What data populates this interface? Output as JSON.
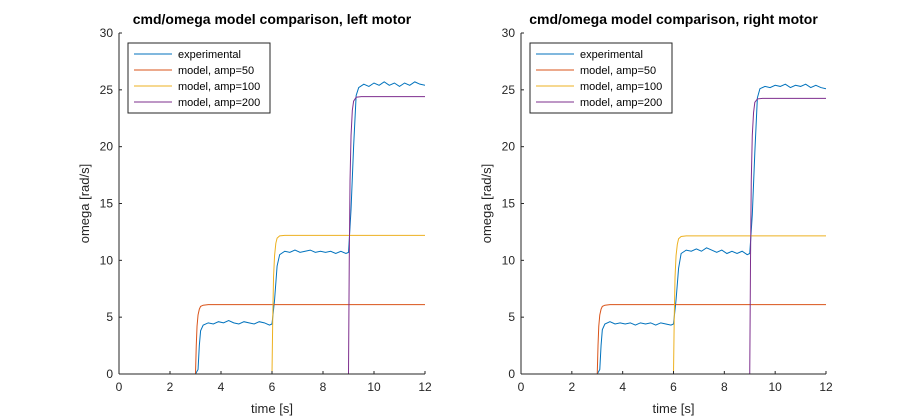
{
  "figure": {
    "background": "#ffffff"
  },
  "chart_data": [
    {
      "type": "line",
      "title": "cmd/omega model comparison, left motor",
      "xlabel": "time [s]",
      "ylabel": "omega [rad/s]",
      "xlim": [
        0,
        12
      ],
      "ylim": [
        0,
        30
      ],
      "xticks": [
        0,
        2,
        4,
        6,
        8,
        10,
        12
      ],
      "yticks": [
        0,
        5,
        10,
        15,
        20,
        25,
        30
      ],
      "grid": false,
      "legend": "top-left",
      "series": [
        {
          "name": "experimental",
          "color": "#0072BD",
          "points": [
            [
              0,
              0
            ],
            [
              3.0,
              0
            ],
            [
              3.1,
              0.4
            ],
            [
              3.15,
              2.5
            ],
            [
              3.2,
              3.8
            ],
            [
              3.3,
              4.3
            ],
            [
              3.5,
              4.5
            ],
            [
              3.7,
              4.4
            ],
            [
              3.9,
              4.6
            ],
            [
              4.1,
              4.5
            ],
            [
              4.3,
              4.7
            ],
            [
              4.5,
              4.5
            ],
            [
              4.7,
              4.4
            ],
            [
              4.9,
              4.6
            ],
            [
              5.1,
              4.5
            ],
            [
              5.3,
              4.4
            ],
            [
              5.5,
              4.6
            ],
            [
              5.7,
              4.5
            ],
            [
              5.9,
              4.3
            ],
            [
              6.0,
              4.4
            ],
            [
              6.1,
              6.5
            ],
            [
              6.2,
              9.5
            ],
            [
              6.3,
              10.5
            ],
            [
              6.5,
              10.8
            ],
            [
              6.7,
              10.7
            ],
            [
              6.9,
              10.9
            ],
            [
              7.1,
              10.7
            ],
            [
              7.3,
              10.8
            ],
            [
              7.5,
              10.9
            ],
            [
              7.7,
              10.7
            ],
            [
              7.9,
              10.8
            ],
            [
              8.1,
              10.7
            ],
            [
              8.3,
              10.8
            ],
            [
              8.5,
              10.6
            ],
            [
              8.7,
              10.8
            ],
            [
              8.9,
              10.6
            ],
            [
              9.0,
              10.7
            ],
            [
              9.1,
              14.5
            ],
            [
              9.2,
              20.0
            ],
            [
              9.3,
              24.5
            ],
            [
              9.4,
              25.2
            ],
            [
              9.6,
              25.5
            ],
            [
              9.8,
              25.3
            ],
            [
              10.0,
              25.6
            ],
            [
              10.2,
              25.4
            ],
            [
              10.4,
              25.7
            ],
            [
              10.6,
              25.4
            ],
            [
              10.8,
              25.6
            ],
            [
              11.0,
              25.3
            ],
            [
              11.2,
              25.6
            ],
            [
              11.4,
              25.4
            ],
            [
              11.6,
              25.7
            ],
            [
              11.8,
              25.5
            ],
            [
              12.0,
              25.4
            ]
          ]
        },
        {
          "name": "model, amp=50",
          "color": "#D95319",
          "points": [
            [
              0,
              0
            ],
            [
              3.0,
              0
            ],
            [
              3.03,
              2.5
            ],
            [
              3.06,
              4.2
            ],
            [
              3.1,
              5.2
            ],
            [
              3.15,
              5.7
            ],
            [
              3.2,
              5.95
            ],
            [
              3.3,
              6.05
            ],
            [
              3.5,
              6.1
            ],
            [
              12.0,
              6.1
            ]
          ]
        },
        {
          "name": "model, amp=100",
          "color": "#EDB120",
          "points": [
            [
              0,
              0
            ],
            [
              6.0,
              0
            ],
            [
              6.03,
              5.0
            ],
            [
              6.06,
              8.5
            ],
            [
              6.1,
              10.4
            ],
            [
              6.15,
              11.5
            ],
            [
              6.2,
              11.95
            ],
            [
              6.3,
              12.15
            ],
            [
              6.5,
              12.2
            ],
            [
              12.0,
              12.2
            ]
          ]
        },
        {
          "name": "model, amp=200",
          "color": "#7E2F8E",
          "points": [
            [
              0,
              0
            ],
            [
              9.0,
              0
            ],
            [
              9.03,
              10.0
            ],
            [
              9.06,
              17.0
            ],
            [
              9.1,
              21.0
            ],
            [
              9.15,
              23.2
            ],
            [
              9.2,
              24.0
            ],
            [
              9.3,
              24.35
            ],
            [
              9.5,
              24.4
            ],
            [
              12.0,
              24.4
            ]
          ]
        }
      ]
    },
    {
      "type": "line",
      "title": "cmd/omega model comparison, right motor",
      "xlabel": "time [s]",
      "ylabel": "omega [rad/s]",
      "xlim": [
        0,
        12
      ],
      "ylim": [
        0,
        30
      ],
      "xticks": [
        0,
        2,
        4,
        6,
        8,
        10,
        12
      ],
      "yticks": [
        0,
        5,
        10,
        15,
        20,
        25,
        30
      ],
      "grid": false,
      "legend": "top-left",
      "series": [
        {
          "name": "experimental",
          "color": "#0072BD",
          "points": [
            [
              0,
              0
            ],
            [
              3.0,
              0
            ],
            [
              3.1,
              0.4
            ],
            [
              3.15,
              2.5
            ],
            [
              3.2,
              3.9
            ],
            [
              3.3,
              4.4
            ],
            [
              3.5,
              4.6
            ],
            [
              3.7,
              4.4
            ],
            [
              3.9,
              4.5
            ],
            [
              4.1,
              4.4
            ],
            [
              4.3,
              4.5
            ],
            [
              4.5,
              4.3
            ],
            [
              4.7,
              4.5
            ],
            [
              4.9,
              4.4
            ],
            [
              5.1,
              4.5
            ],
            [
              5.3,
              4.3
            ],
            [
              5.5,
              4.5
            ],
            [
              5.7,
              4.4
            ],
            [
              5.9,
              4.3
            ],
            [
              6.0,
              4.4
            ],
            [
              6.1,
              6.5
            ],
            [
              6.2,
              9.3
            ],
            [
              6.3,
              10.6
            ],
            [
              6.5,
              10.9
            ],
            [
              6.7,
              10.8
            ],
            [
              6.9,
              11.0
            ],
            [
              7.1,
              10.8
            ],
            [
              7.3,
              11.1
            ],
            [
              7.5,
              10.9
            ],
            [
              7.7,
              10.7
            ],
            [
              7.9,
              10.9
            ],
            [
              8.1,
              10.6
            ],
            [
              8.3,
              10.8
            ],
            [
              8.5,
              10.6
            ],
            [
              8.7,
              10.8
            ],
            [
              8.9,
              10.5
            ],
            [
              9.0,
              10.6
            ],
            [
              9.1,
              14.0
            ],
            [
              9.2,
              19.5
            ],
            [
              9.3,
              24.3
            ],
            [
              9.4,
              25.1
            ],
            [
              9.6,
              25.3
            ],
            [
              9.8,
              25.2
            ],
            [
              10.0,
              25.4
            ],
            [
              10.2,
              25.3
            ],
            [
              10.4,
              25.5
            ],
            [
              10.6,
              25.2
            ],
            [
              10.8,
              25.4
            ],
            [
              11.0,
              25.3
            ],
            [
              11.2,
              25.5
            ],
            [
              11.4,
              25.2
            ],
            [
              11.6,
              25.4
            ],
            [
              11.8,
              25.2
            ],
            [
              12.0,
              25.1
            ]
          ]
        },
        {
          "name": "model, amp=50",
          "color": "#D95319",
          "points": [
            [
              0,
              0
            ],
            [
              3.0,
              0
            ],
            [
              3.03,
              2.5
            ],
            [
              3.06,
              4.2
            ],
            [
              3.1,
              5.2
            ],
            [
              3.15,
              5.7
            ],
            [
              3.2,
              5.95
            ],
            [
              3.3,
              6.05
            ],
            [
              3.5,
              6.1
            ],
            [
              12.0,
              6.1
            ]
          ]
        },
        {
          "name": "model, amp=100",
          "color": "#EDB120",
          "points": [
            [
              0,
              0
            ],
            [
              6.0,
              0
            ],
            [
              6.03,
              5.0
            ],
            [
              6.06,
              8.5
            ],
            [
              6.1,
              10.4
            ],
            [
              6.15,
              11.4
            ],
            [
              6.2,
              11.9
            ],
            [
              6.3,
              12.1
            ],
            [
              6.5,
              12.15
            ],
            [
              12.0,
              12.15
            ]
          ]
        },
        {
          "name": "model, amp=200",
          "color": "#7E2F8E",
          "points": [
            [
              0,
              0
            ],
            [
              9.0,
              0
            ],
            [
              9.03,
              10.0
            ],
            [
              9.06,
              17.0
            ],
            [
              9.1,
              21.0
            ],
            [
              9.15,
              23.0
            ],
            [
              9.2,
              23.9
            ],
            [
              9.3,
              24.2
            ],
            [
              9.5,
              24.25
            ],
            [
              12.0,
              24.25
            ]
          ]
        }
      ]
    }
  ]
}
